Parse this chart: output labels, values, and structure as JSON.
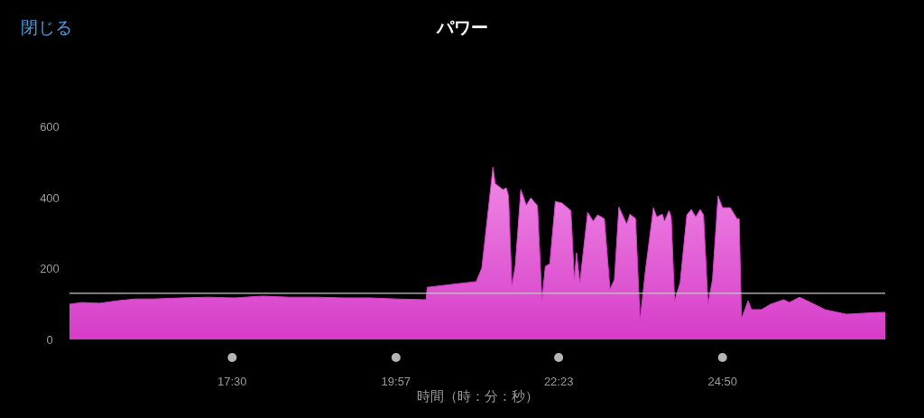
{
  "chart_data": {
    "type": "area",
    "title": "パワー",
    "xlabel": "時間（時：分：秒）",
    "annotations": [
      "閉じる"
    ],
    "x": [
      904,
      915,
      931,
      947,
      963,
      979,
      1004,
      1028,
      1052,
      1077,
      1101,
      1125,
      1150,
      1174,
      1198,
      1223,
      1224,
      1225,
      1269,
      1274,
      1284,
      1286,
      1293,
      1296,
      1298,
      1301,
      1304,
      1309,
      1314,
      1318,
      1324,
      1328,
      1331,
      1335,
      1340,
      1346,
      1354,
      1357,
      1359,
      1362,
      1369,
      1374,
      1378,
      1384,
      1389,
      1393,
      1397,
      1404,
      1407,
      1412,
      1416,
      1421,
      1428,
      1431,
      1436,
      1438,
      1442,
      1444,
      1447,
      1452,
      1458,
      1462,
      1466,
      1470,
      1473,
      1477,
      1481,
      1486,
      1490,
      1497,
      1503,
      1505,
      1507,
      1513,
      1516,
      1525,
      1533,
      1545,
      1550,
      1559,
      1566,
      1582,
      1601,
      1618,
      1631,
      1636
    ],
    "values": [
      99,
      104,
      102,
      109,
      114,
      114,
      117,
      119,
      117,
      122,
      119,
      119,
      117,
      117,
      114,
      112,
      112,
      147,
      163,
      201,
      485,
      439,
      422,
      427,
      404,
      150,
      206,
      422,
      378,
      399,
      376,
      109,
      206,
      213,
      389,
      384,
      363,
      168,
      244,
      160,
      358,
      333,
      351,
      340,
      142,
      168,
      373,
      325,
      353,
      340,
      53,
      198,
      371,
      345,
      353,
      333,
      363,
      345,
      109,
      160,
      351,
      366,
      345,
      366,
      351,
      99,
      168,
      404,
      371,
      371,
      340,
      340,
      58,
      109,
      84,
      84,
      99,
      112,
      104,
      119,
      109,
      84,
      71,
      74,
      76,
      76
    ],
    "color": "#d63cc8",
    "xlim": [
      904,
      1636
    ],
    "xticks": [
      {
        "value": 1050,
        "label": "17:30"
      },
      {
        "value": 1197,
        "label": "19:57"
      },
      {
        "value": 1343,
        "label": "22:23"
      },
      {
        "value": 1490,
        "label": "24:50"
      }
    ],
    "ylim": [
      0,
      600
    ],
    "yticks": [
      0,
      200,
      400,
      600
    ],
    "ref_lines": [
      {
        "axis": "y",
        "value": 130,
        "color": "#c8c8c8"
      }
    ]
  }
}
